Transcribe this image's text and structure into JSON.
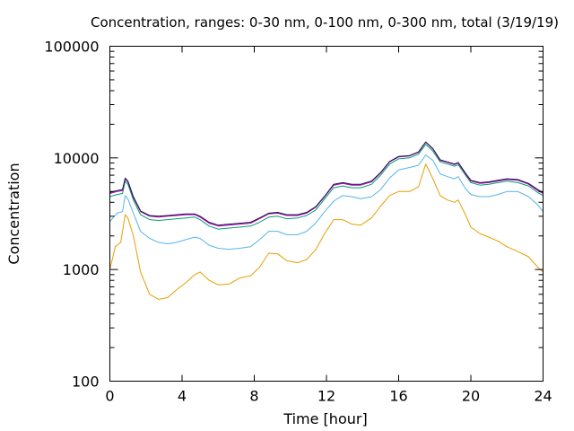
{
  "chart_data": {
    "type": "line",
    "title": "Concentration, ranges: 0-30 nm, 0-100 nm, 0-300 nm, total (3/19/19)",
    "xlabel": "Time [hour]",
    "ylabel": "Concentration",
    "xlim": [
      0,
      24
    ],
    "ylim": [
      100,
      100000
    ],
    "yscale": "log",
    "xticks": [
      0,
      4,
      8,
      12,
      16,
      20,
      24
    ],
    "xtick_labels": [
      "0",
      "4",
      "8",
      "12",
      "16",
      "20",
      "24"
    ],
    "yticks": [
      100,
      1000,
      10000,
      100000
    ],
    "ytick_labels": [
      "100",
      "1000",
      "10000",
      "100000"
    ],
    "grid": false,
    "series": [
      {
        "color": "#e69f00",
        "x": [
          0,
          0.3,
          0.6,
          0.85,
          1.0,
          1.3,
          1.7,
          2.2,
          2.7,
          3.2,
          3.7,
          4.2,
          4.7,
          5.0,
          5.5,
          6.0,
          6.6,
          7.2,
          7.8,
          8.3,
          8.8,
          9.3,
          9.8,
          10.4,
          10.9,
          11.4,
          11.9,
          12.4,
          12.9,
          13.4,
          13.9,
          14.5,
          15.0,
          15.5,
          16.0,
          16.6,
          17.1,
          17.5,
          17.9,
          18.3,
          18.7,
          19.1,
          19.3,
          19.7,
          20.0,
          20.5,
          21.0,
          21.5,
          22.0,
          22.6,
          23.2,
          23.7,
          24.0
        ],
        "y": [
          1000,
          1600,
          1750,
          3100,
          2900,
          2000,
          950,
          600,
          540,
          560,
          660,
          760,
          900,
          950,
          800,
          730,
          740,
          840,
          880,
          1050,
          1400,
          1380,
          1200,
          1150,
          1230,
          1500,
          2100,
          2800,
          2800,
          2550,
          2500,
          2900,
          3700,
          4600,
          5000,
          5000,
          5500,
          8800,
          6500,
          4600,
          4200,
          4000,
          4200,
          3100,
          2400,
          2100,
          1950,
          1800,
          1600,
          1450,
          1300,
          1050,
          950
        ]
      },
      {
        "color": "#56b4e9",
        "x": [
          0,
          0.4,
          0.7,
          0.85,
          1.0,
          1.3,
          1.7,
          2.2,
          2.7,
          3.2,
          3.7,
          4.2,
          4.7,
          5.0,
          5.5,
          6.0,
          6.6,
          7.2,
          7.8,
          8.3,
          8.8,
          9.3,
          9.8,
          10.4,
          10.9,
          11.4,
          11.9,
          12.4,
          12.9,
          13.4,
          13.9,
          14.5,
          15.0,
          15.5,
          16.0,
          16.6,
          17.1,
          17.5,
          17.9,
          18.3,
          18.7,
          19.1,
          19.3,
          19.7,
          20.0,
          20.5,
          21.0,
          21.5,
          22.0,
          22.6,
          23.2,
          23.7,
          24.0
        ],
        "y": [
          2700,
          3200,
          3300,
          4600,
          4300,
          3200,
          2200,
          1900,
          1750,
          1700,
          1750,
          1850,
          1950,
          1900,
          1650,
          1550,
          1520,
          1550,
          1600,
          1850,
          2200,
          2200,
          2050,
          2050,
          2200,
          2600,
          3300,
          4100,
          4600,
          4500,
          4300,
          4500,
          5200,
          6600,
          7800,
          8200,
          8600,
          10600,
          9500,
          7200,
          6800,
          6500,
          6800,
          5300,
          4700,
          4500,
          4500,
          4700,
          5000,
          5000,
          4500,
          3800,
          3300
        ]
      },
      {
        "color": "#009e73",
        "x": [
          0,
          0.4,
          0.7,
          0.85,
          1.0,
          1.3,
          1.7,
          2.2,
          2.7,
          3.2,
          3.7,
          4.2,
          4.7,
          5.0,
          5.5,
          6.0,
          6.6,
          7.2,
          7.8,
          8.3,
          8.8,
          9.3,
          9.8,
          10.4,
          10.9,
          11.4,
          11.9,
          12.4,
          12.9,
          13.4,
          13.9,
          14.5,
          15.0,
          15.5,
          16.0,
          16.6,
          17.1,
          17.5,
          17.9,
          18.3,
          18.7,
          19.1,
          19.3,
          19.7,
          20.0,
          20.5,
          21.0,
          21.5,
          22.0,
          22.6,
          23.2,
          23.7,
          24.0
        ],
        "y": [
          4500,
          4700,
          4800,
          6200,
          5800,
          4200,
          3100,
          2800,
          2750,
          2800,
          2850,
          2900,
          2950,
          2800,
          2450,
          2300,
          2350,
          2400,
          2450,
          2650,
          2950,
          3000,
          2850,
          2900,
          3050,
          3400,
          4300,
          5400,
          5600,
          5400,
          5400,
          5800,
          7000,
          8800,
          9800,
          10000,
          10800,
          13200,
          11500,
          9200,
          8800,
          8400,
          8700,
          7000,
          6000,
          5700,
          5800,
          6000,
          6200,
          6000,
          5600,
          4900,
          4600
        ]
      },
      {
        "color": "#c000c0",
        "x": [
          0,
          0.4,
          0.7,
          0.85,
          1.0,
          1.3,
          1.7,
          2.2,
          2.7,
          3.2,
          3.7,
          4.2,
          4.7,
          5.0,
          5.5,
          6.0,
          6.6,
          7.2,
          7.8,
          8.3,
          8.8,
          9.3,
          9.8,
          10.4,
          10.9,
          11.4,
          11.9,
          12.4,
          12.9,
          13.4,
          13.9,
          14.5,
          15.0,
          15.5,
          16.0,
          16.6,
          17.1,
          17.5,
          17.9,
          18.3,
          18.7,
          19.1,
          19.3,
          19.7,
          20.0,
          20.5,
          21.0,
          21.5,
          22.0,
          22.6,
          23.2,
          23.7,
          24.0
        ],
        "y": [
          4800,
          5000,
          5100,
          6500,
          6100,
          4400,
          3300,
          3000,
          2950,
          3000,
          3050,
          3100,
          3100,
          2950,
          2600,
          2450,
          2500,
          2550,
          2600,
          2850,
          3150,
          3200,
          3050,
          3050,
          3200,
          3600,
          4500,
          5700,
          5900,
          5700,
          5700,
          6100,
          7300,
          9200,
          10200,
          10400,
          11200,
          13800,
          12000,
          9500,
          9100,
          8700,
          9000,
          7200,
          6200,
          5900,
          6000,
          6200,
          6400,
          6300,
          5800,
          5100,
          4800
        ]
      },
      {
        "color": "#1a1a4a",
        "x": [
          0,
          0.4,
          0.7,
          0.85,
          1.0,
          1.3,
          1.7,
          2.2,
          2.7,
          3.2,
          3.7,
          4.2,
          4.7,
          5.0,
          5.5,
          6.0,
          6.6,
          7.2,
          7.8,
          8.3,
          8.8,
          9.3,
          9.8,
          10.4,
          10.9,
          11.4,
          11.9,
          12.4,
          12.9,
          13.4,
          13.9,
          14.5,
          15.0,
          15.5,
          16.0,
          16.6,
          17.1,
          17.5,
          17.9,
          18.3,
          18.7,
          19.1,
          19.3,
          19.7,
          20.0,
          20.5,
          21.0,
          21.5,
          22.0,
          22.6,
          23.2,
          23.7,
          24.0
        ],
        "y": [
          4900,
          5100,
          5200,
          6600,
          6200,
          4500,
          3350,
          3050,
          3000,
          3050,
          3100,
          3150,
          3150,
          3000,
          2650,
          2500,
          2550,
          2600,
          2650,
          2900,
          3200,
          3250,
          3100,
          3100,
          3250,
          3650,
          4550,
          5800,
          6000,
          5800,
          5800,
          6200,
          7400,
          9300,
          10300,
          10500,
          11300,
          13900,
          12100,
          9600,
          9200,
          8800,
          9100,
          7300,
          6300,
          6000,
          6100,
          6300,
          6500,
          6400,
          5900,
          5200,
          4900
        ]
      }
    ]
  }
}
